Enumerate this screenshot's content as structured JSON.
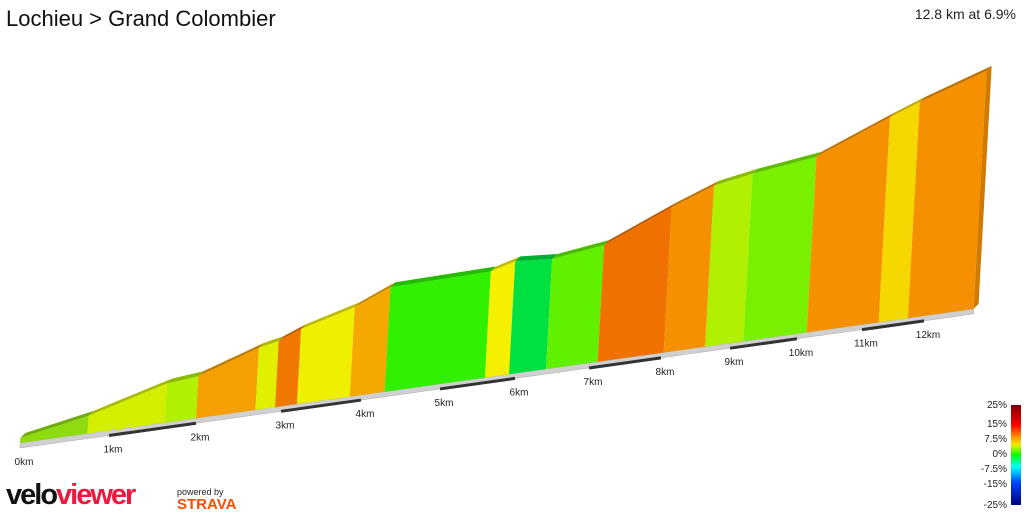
{
  "header": {
    "title": "Lochieu > Grand Colombier",
    "summary": "12.8 km at 6.9%"
  },
  "chart_data": {
    "type": "area",
    "style": "3d-gradient-profile",
    "xlabel": "",
    "ylabel": "",
    "x_unit": "km",
    "y_unit": "m (relative)",
    "tick_labels": [
      "0km",
      "1km",
      "2km",
      "3km",
      "4km",
      "5km",
      "6km",
      "7km",
      "8km",
      "9km",
      "10km",
      "11km",
      "12km"
    ],
    "segments": [
      {
        "start_km": 0,
        "end_km": 0.76,
        "elev_start": 0,
        "elev_end": 48,
        "color": "#8edc10"
      },
      {
        "start_km": 0.76,
        "end_km": 1.64,
        "elev_start": 48,
        "elev_end": 129,
        "color": "#d4ee00"
      },
      {
        "start_km": 1.64,
        "end_km": 2.0,
        "elev_start": 129,
        "elev_end": 140,
        "color": "#b0f000"
      },
      {
        "start_km": 2.0,
        "end_km": 2.7,
        "elev_start": 140,
        "elev_end": 216,
        "color": "#f5a000"
      },
      {
        "start_km": 2.7,
        "end_km": 2.93,
        "elev_start": 216,
        "elev_end": 231,
        "color": "#e0f000"
      },
      {
        "start_km": 2.93,
        "end_km": 3.2,
        "elev_start": 231,
        "elev_end": 265,
        "color": "#f07800"
      },
      {
        "start_km": 3.2,
        "end_km": 3.86,
        "elev_start": 265,
        "elev_end": 320,
        "color": "#eef000"
      },
      {
        "start_km": 3.86,
        "end_km": 4.3,
        "elev_start": 320,
        "elev_end": 377,
        "color": "#f5a800"
      },
      {
        "start_km": 4.3,
        "end_km": 5.6,
        "elev_start": 377,
        "elev_end": 383,
        "color": "#30f000"
      },
      {
        "start_km": 5.6,
        "end_km": 5.92,
        "elev_start": 383,
        "elev_end": 409,
        "color": "#f5f000"
      },
      {
        "start_km": 5.92,
        "end_km": 6.42,
        "elev_start": 409,
        "elev_end": 398,
        "color": "#00e040"
      },
      {
        "start_km": 6.42,
        "end_km": 7.12,
        "elev_start": 398,
        "elev_end": 423,
        "color": "#60f000"
      },
      {
        "start_km": 7.12,
        "end_km": 8.04,
        "elev_start": 423,
        "elev_end": 531,
        "color": "#f07000"
      },
      {
        "start_km": 8.04,
        "end_km": 8.64,
        "elev_start": 531,
        "elev_end": 591,
        "color": "#f59000"
      },
      {
        "start_km": 8.64,
        "end_km": 9.2,
        "elev_start": 591,
        "elev_end": 616,
        "color": "#b0f000"
      },
      {
        "start_km": 9.2,
        "end_km": 10.15,
        "elev_start": 616,
        "elev_end": 646,
        "color": "#78f000"
      },
      {
        "start_km": 10.15,
        "end_km": 11.27,
        "elev_start": 646,
        "elev_end": 758,
        "color": "#f59000"
      },
      {
        "start_km": 11.27,
        "end_km": 11.74,
        "elev_start": 758,
        "elev_end": 800,
        "color": "#f5d800"
      },
      {
        "start_km": 11.74,
        "end_km": 12.8,
        "elev_start": 800,
        "elev_end": 883,
        "color": "#f59000"
      }
    ],
    "legend": {
      "title": "",
      "labels": [
        "25%",
        "15%",
        "7.5%",
        "0%",
        "-7.5%",
        "-15%",
        "-25%"
      ],
      "placement": "bottom-right"
    }
  },
  "branding": {
    "logo_a": "velo",
    "logo_b": "viewer",
    "powered_by": "powered by",
    "strava": "STRAVA"
  }
}
